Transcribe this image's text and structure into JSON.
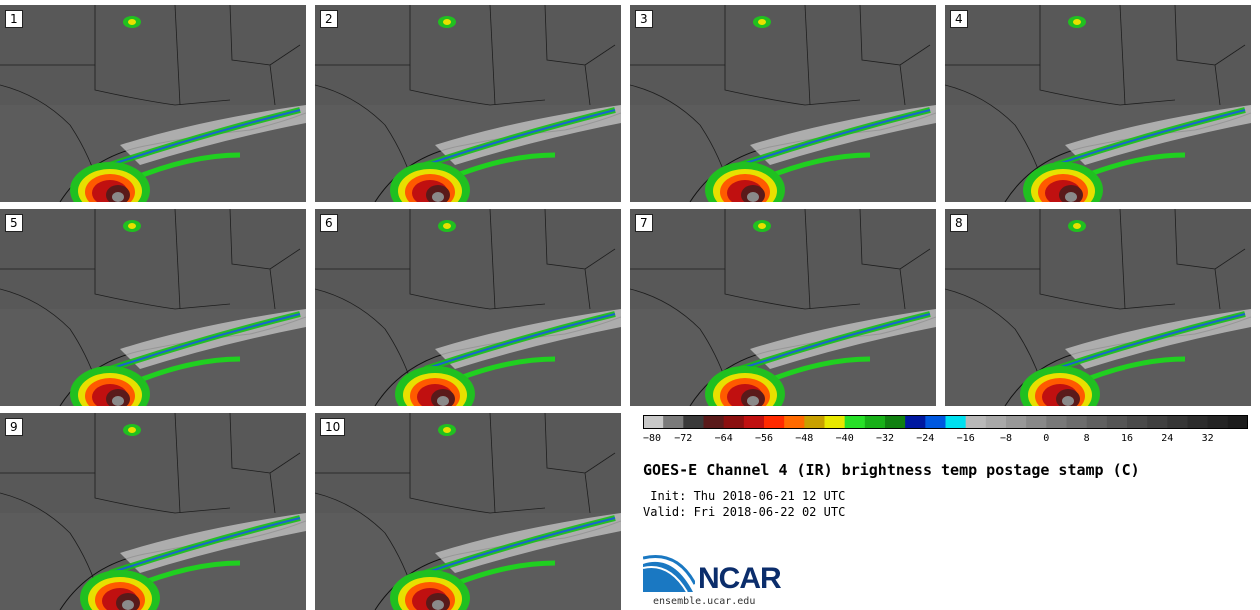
{
  "panels": [
    {
      "label": "1"
    },
    {
      "label": "2"
    },
    {
      "label": "3"
    },
    {
      "label": "4"
    },
    {
      "label": "5"
    },
    {
      "label": "6"
    },
    {
      "label": "7"
    },
    {
      "label": "8"
    },
    {
      "label": "9"
    },
    {
      "label": "10"
    }
  ],
  "colorbar": {
    "colors": [
      "#c8c8c8",
      "#7a7a7a",
      "#3a3a3a",
      "#5a1a1a",
      "#8b0f0f",
      "#c01010",
      "#ff2a00",
      "#ff6a00",
      "#c8a000",
      "#e8e800",
      "#28e028",
      "#18b018",
      "#108010",
      "#0018a0",
      "#0058e0",
      "#00e0f0",
      "#b8b8b8",
      "#a8a8a8",
      "#989898",
      "#888888",
      "#787878",
      "#6c6c6c",
      "#606060",
      "#555555",
      "#4a4a4a",
      "#404040",
      "#363636",
      "#2c2c2c",
      "#242424",
      "#1c1c1c"
    ],
    "tick_labels": [
      "−80",
      "−72",
      "−64",
      "−56",
      "−48",
      "−40",
      "−32",
      "−24",
      "−16",
      "−8",
      "0",
      "8",
      "16",
      "24",
      "32"
    ]
  },
  "title": "GOES-E Channel 4 (IR) brightness temp postage stamp (C)",
  "init": " Init: Thu 2018-06-21 12 UTC",
  "valid": "Valid: Fri 2018-06-22 02 UTC",
  "logo": {
    "word": "NCAR",
    "url": "ensemble.ucar.edu"
  }
}
